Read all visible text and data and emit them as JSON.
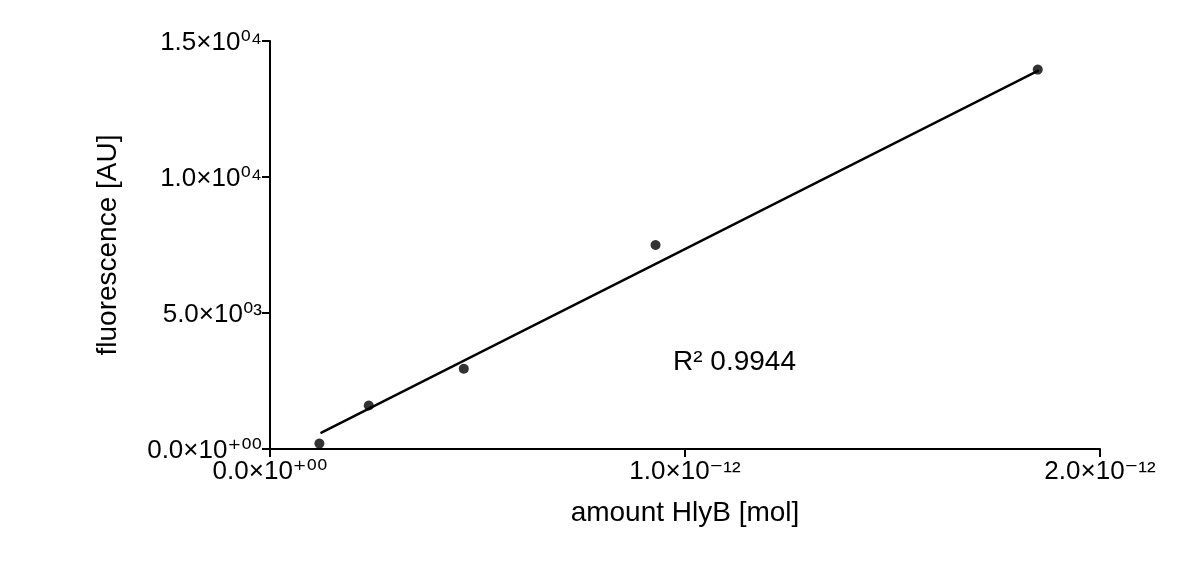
{
  "chart_data": {
    "type": "scatter",
    "xlabel": "amount HlyB [mol]",
    "ylabel": "fluorescence [AU]",
    "xlim": [
      0,
      2e-12
    ],
    "ylim": [
      0,
      15000
    ],
    "xticks": [
      {
        "value": 0,
        "label": "0.0×10⁺⁰⁰"
      },
      {
        "value": 1e-12,
        "label": "1.0×10⁻¹²"
      },
      {
        "value": 2e-12,
        "label": "2.0×10⁻¹²"
      }
    ],
    "yticks": [
      {
        "value": 0,
        "label": "0.0×10⁺⁰⁰"
      },
      {
        "value": 5000,
        "label": "5.0×10⁰³"
      },
      {
        "value": 10000,
        "label": "1.0×10⁰⁴"
      },
      {
        "value": 15000,
        "label": "1.5×10⁰⁴"
      }
    ],
    "grid": false,
    "series": [
      {
        "color": "#000000",
        "marker": "circle",
        "x": [
          1.19e-13,
          2.38e-13,
          4.67e-13,
          9.29e-13,
          1.85e-12
        ],
        "values": [
          200,
          1600,
          2950,
          7500,
          13950
        ]
      },
      {
        "type": "line",
        "color": "#000000",
        "marker": "none",
        "line_style": "solid",
        "x": [
          1.24e-13,
          1.85e-12
        ],
        "values": [
          600,
          13900
        ]
      }
    ],
    "annotations": [
      "R² 0.9944"
    ]
  }
}
